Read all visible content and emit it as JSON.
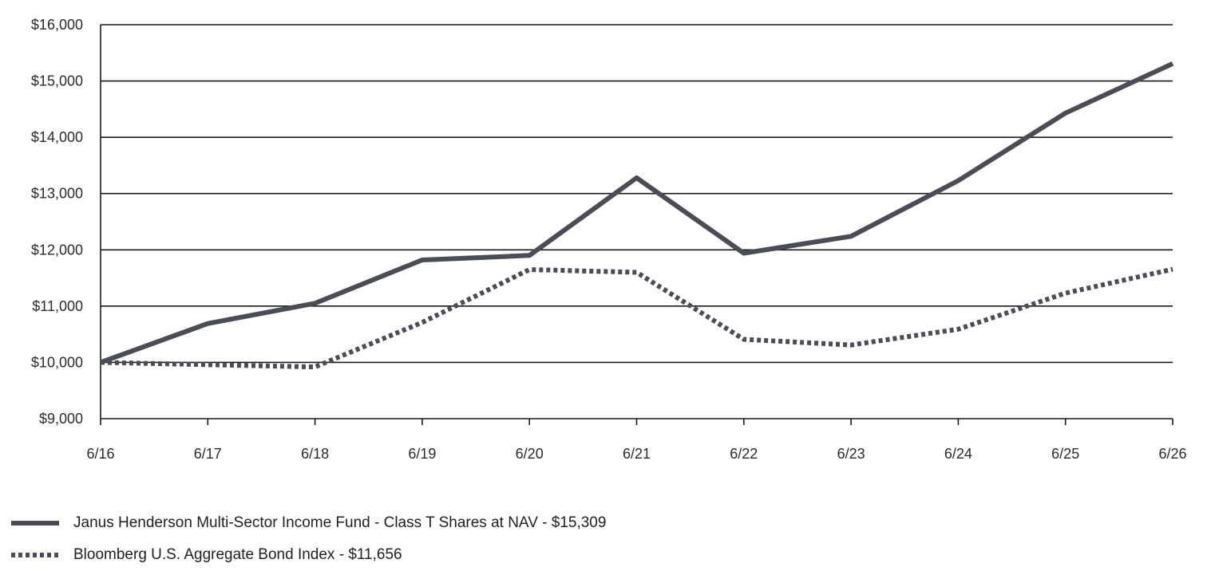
{
  "chart_data": {
    "type": "line",
    "categories": [
      "6/16",
      "6/17",
      "6/18",
      "6/19",
      "6/20",
      "6/21",
      "6/22",
      "6/23",
      "6/24",
      "6/25",
      "6/26"
    ],
    "ylim": [
      9000,
      16000
    ],
    "yticks": [
      9000,
      10000,
      11000,
      12000,
      13000,
      14000,
      15000,
      16000
    ],
    "ytick_labels": [
      "$9,000",
      "$10,000",
      "$11,000",
      "$12,000",
      "$13,000",
      "$14,000",
      "$15,000",
      "$16,000"
    ],
    "grid": true,
    "legend_position": "bottom-left",
    "series": [
      {
        "name": "Janus Henderson Multi-Sector Income Fund - Class T Shares at NAV - $15,309",
        "style": "solid",
        "color": "#4a4c56",
        "values": [
          10000,
          10690,
          11050,
          11820,
          11900,
          13280,
          11940,
          12240,
          13230,
          14430,
          15309
        ]
      },
      {
        "name": "Bloomberg U.S. Aggregate Bond Index - $11,656",
        "style": "dotted",
        "color": "#4a4c56",
        "values": [
          10000,
          9960,
          9920,
          10710,
          11650,
          11600,
          10410,
          10310,
          10590,
          11230,
          11656
        ]
      }
    ]
  }
}
